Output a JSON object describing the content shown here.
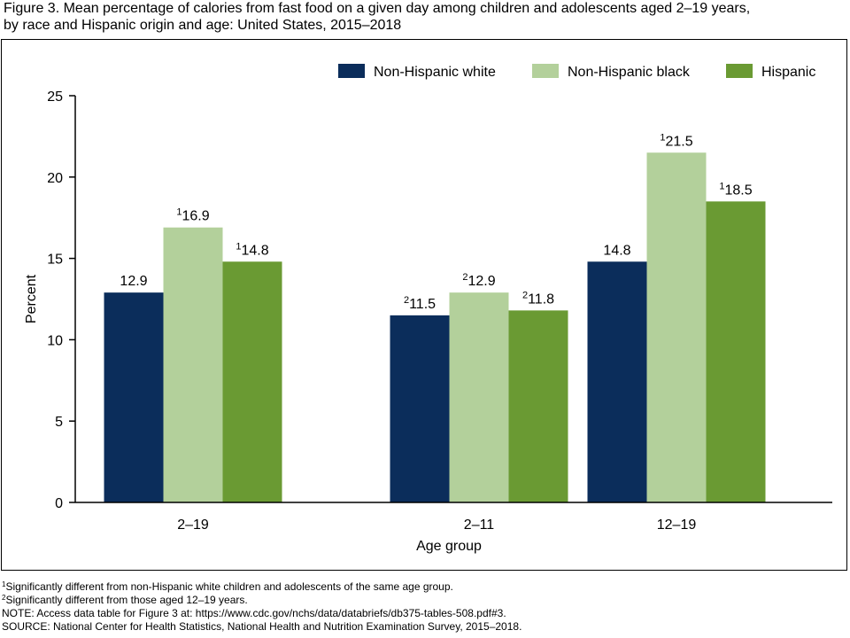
{
  "title": {
    "line1": "Figure 3. Mean percentage of calories from fast food on a given day among children and adolescents aged 2–19 years,",
    "line2": "by race and Hispanic origin and age: United States, 2015–2018"
  },
  "colors": {
    "non_hispanic_white": "#0b2d5b",
    "non_hispanic_black": "#b3d09b",
    "hispanic": "#6a9a33"
  },
  "chart_data": {
    "type": "bar",
    "xlabel": "Age group",
    "ylabel": "Percent",
    "ylim": [
      0,
      25
    ],
    "yticks": [
      0,
      5,
      10,
      15,
      20,
      25
    ],
    "grid": false,
    "legend_position": "top-right",
    "categories": [
      "2–19",
      "2–11",
      "12–19"
    ],
    "series": [
      {
        "name": "Non-Hispanic white",
        "color": "#0b2d5b",
        "values": [
          12.9,
          11.5,
          14.8
        ],
        "labels": [
          "12.9",
          "11.5",
          "14.8"
        ],
        "footnote": [
          "",
          "2",
          ""
        ]
      },
      {
        "name": "Non-Hispanic black",
        "color": "#b3d09b",
        "values": [
          16.9,
          12.9,
          21.5
        ],
        "labels": [
          "16.9",
          "12.9",
          "21.5"
        ],
        "footnote": [
          "1",
          "2",
          "1"
        ]
      },
      {
        "name": "Hispanic",
        "color": "#6a9a33",
        "values": [
          14.8,
          11.8,
          18.5
        ],
        "labels": [
          "14.8",
          "11.8",
          "18.5"
        ],
        "footnote": [
          "1",
          "2",
          "1"
        ]
      }
    ]
  },
  "footnotes": {
    "note1_marker": "1",
    "note1_text": "Significantly different from non-Hispanic white children and adolescents of the same age group.",
    "note2_marker": "2",
    "note2_text": "Significantly different from those aged 12–19 years.",
    "note": "NOTE: Access data table for Figure 3 at: https://www.cdc.gov/nchs/data/databriefs/db375-tables-508.pdf#3.",
    "source": "SOURCE: National Center for Health Statistics, National Health and Nutrition Examination Survey, 2015–2018."
  }
}
